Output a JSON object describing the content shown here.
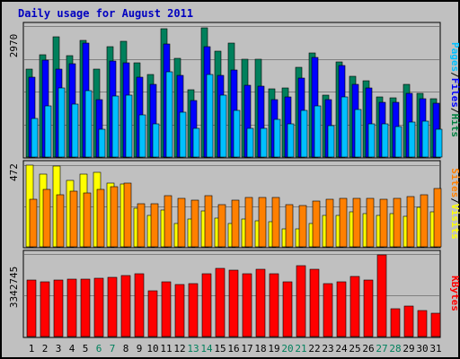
{
  "chart_data": {
    "type": "bar",
    "title": "Daily usage for August 2011",
    "days": [
      "1",
      "2",
      "3",
      "4",
      "5",
      "6",
      "7",
      "8",
      "9",
      "10",
      "11",
      "12",
      "13",
      "14",
      "15",
      "16",
      "17",
      "18",
      "19",
      "20",
      "21",
      "22",
      "23",
      "24",
      "25",
      "26",
      "27",
      "28",
      "29",
      "30",
      "31"
    ],
    "weekend_days": [
      "6",
      "7",
      "13",
      "14",
      "20",
      "21",
      "27",
      "28"
    ],
    "panels": [
      {
        "id": "hits_files_pages",
        "ymax_label": "2970",
        "ymax": 2970,
        "legend": [
          "Pages",
          "/",
          "Files",
          "/",
          "Hits"
        ],
        "legend_colors": [
          "#00c0ff",
          "#000000",
          "#0000ff",
          "#000000",
          "#008040"
        ],
        "series": [
          {
            "name": "Hits",
            "color": "#00805c",
            "values": [
              2000,
              2310,
              2720,
              2300,
              2650,
              1990,
              2500,
              2630,
              2130,
              1870,
              2900,
              2230,
              1520,
              2930,
              2400,
              2590,
              2210,
              2210,
              1550,
              1560,
              2040,
              2360,
              1410,
              2150,
              1830,
              1730,
              1360,
              1340,
              1640,
              1450,
              1320
            ]
          },
          {
            "name": "Files",
            "color": "#0000ff",
            "values": [
              1820,
              2190,
              1990,
              2110,
              2580,
              1300,
              2180,
              2140,
              1820,
              1650,
              2560,
              1850,
              1290,
              2510,
              1850,
              1980,
              1630,
              1610,
              1310,
              1360,
              1800,
              2250,
              1300,
              2080,
              1650,
              1560,
              1250,
              1240,
              1440,
              1330,
              1220
            ]
          },
          {
            "name": "Pages",
            "color": "#00c0ff",
            "values": [
              870,
              1160,
              1560,
              1200,
              1500,
              630,
              1390,
              1410,
              950,
              760,
              1930,
              1020,
              650,
              1880,
              1400,
              1050,
              660,
              650,
              850,
              750,
              1050,
              1150,
              720,
              1360,
              1080,
              750,
              760,
              700,
              800,
              820,
              640
            ]
          }
        ]
      },
      {
        "id": "visits_sites",
        "ymax_label": "472",
        "ymax": 472,
        "legend": [
          "Sites",
          "/",
          "Visits"
        ],
        "legend_colors": [
          "#ff8000",
          "#000000",
          "#ffff00"
        ],
        "series": [
          {
            "name": "Visits",
            "color": "#ffff00",
            "values": [
              470,
              420,
              465,
              385,
              420,
              430,
              370,
              365,
              225,
              180,
              215,
              135,
              160,
              210,
              165,
              135,
              160,
              150,
              145,
              105,
              105,
              135,
              180,
              180,
              200,
              190,
              180,
              190,
              175,
              230,
              200
            ]
          },
          {
            "name": "Sites",
            "color": "#ff8000",
            "values": [
              275,
              330,
              300,
              320,
              310,
              330,
              350,
              370,
              250,
              250,
              295,
              280,
              270,
              295,
              245,
              270,
              285,
              285,
              285,
              245,
              240,
              265,
              275,
              280,
              280,
              280,
              275,
              280,
              290,
              300,
              335
            ]
          }
        ]
      },
      {
        "id": "kbytes",
        "ymax_label": "3342745",
        "ymax": 3342745,
        "legend": [
          "KBytes"
        ],
        "legend_colors": [
          "#ff0000"
        ],
        "series": [
          {
            "name": "KBytes",
            "color": "#ff0000",
            "values": [
              2300000,
              2220000,
              2300000,
              2340000,
              2310000,
              2360000,
              2400000,
              2480000,
              2530000,
              1840000,
              2220000,
              2090000,
              2130000,
              2550000,
              2750000,
              2680000,
              2530000,
              2730000,
              2550000,
              2230000,
              2870000,
              2720000,
              2130000,
              2210000,
              2430000,
              2300000,
              3300000,
              1120000,
              1230000,
              1060000,
              930000
            ]
          }
        ]
      }
    ],
    "grid": true
  }
}
